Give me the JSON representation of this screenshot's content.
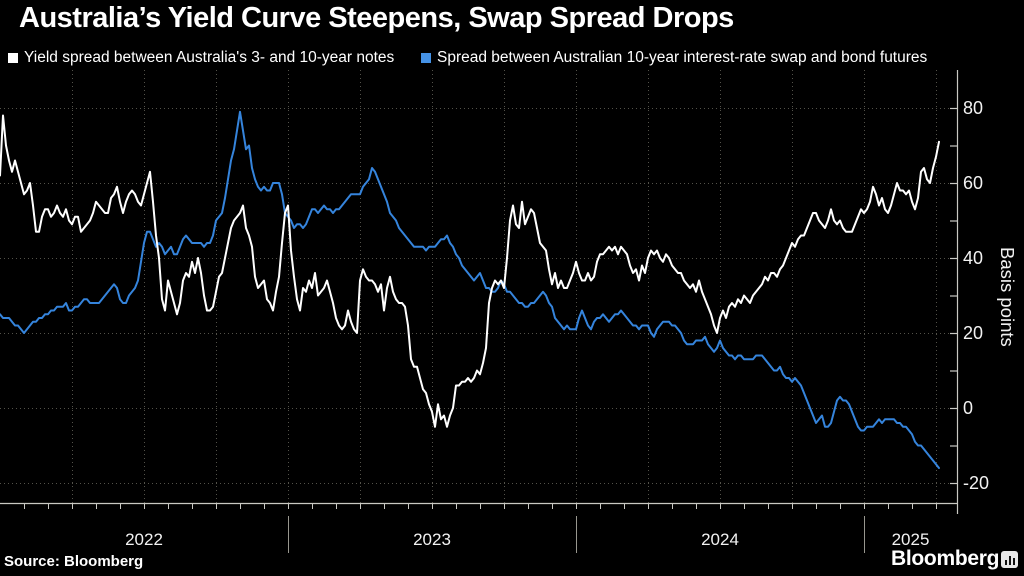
{
  "header": {
    "title": "Australia’s Yield Curve Steepens, Swap Spread Drops"
  },
  "legend": [
    {
      "label": "Yield spread between Australia's 3- and 10-year notes",
      "color": "#ffffff"
    },
    {
      "label": "Spread between Australian 10-year interest-rate swap and bond futures",
      "color": "#4592e6"
    }
  ],
  "footer": {
    "source": "Source: Bloomberg",
    "brand": "Bloomberg"
  },
  "colors": {
    "background": "#000000",
    "white_series": "#ffffff",
    "blue_series": "#3584dc",
    "grid": "#53524a",
    "axis": "#c9c9c3",
    "year_separator": "#98978f",
    "text": "#f2f2f2"
  },
  "chart_data": {
    "type": "line",
    "title": "Australia’s Yield Curve Steepens, Swap Spread Drops",
    "ylabel": "Basis points",
    "y_ticks": [
      80,
      60,
      40,
      20,
      0,
      -20
    ],
    "y_minor_step": 10,
    "ylim": [
      -25,
      90
    ],
    "x_unit": "months since 2022-01",
    "x_start": 0,
    "x_step": 0.125,
    "x_range_months": [
      0,
      39.875
    ],
    "x_tick_labels": [
      "2022",
      "2023",
      "2024",
      "2025"
    ],
    "year_boundary_months": [
      12,
      24,
      36
    ],
    "quarter_gridline_months": [
      3,
      6,
      9,
      12,
      15,
      18,
      21,
      24,
      27,
      30,
      33,
      36,
      39
    ],
    "grid": "dotted",
    "legend_position": "top",
    "series": [
      {
        "name": "Yield spread between Australia's 3- and 10-year notes",
        "color": "#ffffff",
        "values": [
          62,
          78,
          70,
          66,
          63,
          66,
          63,
          60,
          57,
          58,
          60,
          54,
          47,
          47,
          51,
          53,
          53,
          51,
          52,
          54,
          52,
          51,
          53,
          50,
          49,
          51,
          51,
          47,
          48,
          49,
          50,
          52,
          55,
          54,
          53,
          52,
          52,
          56,
          57,
          59,
          55,
          52,
          55,
          57,
          58,
          57,
          55,
          54,
          57,
          60,
          63,
          55,
          46,
          40,
          29,
          26,
          34,
          31,
          28,
          25,
          28,
          34,
          36,
          35,
          39,
          36,
          40,
          36,
          30,
          26,
          26,
          27,
          31,
          35,
          36,
          40,
          44,
          48,
          50,
          51,
          52,
          54,
          48,
          46,
          43,
          35,
          32,
          33,
          34,
          29,
          28,
          26,
          31,
          35,
          44,
          52,
          54,
          42,
          35,
          29,
          26,
          32,
          31,
          34,
          32,
          36,
          30,
          31,
          32,
          34,
          31,
          28,
          24,
          22,
          21,
          22,
          26,
          23,
          21,
          20,
          34,
          37,
          35,
          34,
          34,
          33,
          31,
          33,
          26,
          32,
          35,
          31,
          29,
          28,
          28,
          27,
          22,
          13,
          11,
          11,
          8,
          5,
          4,
          1,
          -1,
          -5,
          1,
          -3,
          -2,
          -5,
          -2,
          0,
          6,
          6,
          7,
          7,
          8,
          7,
          8,
          10,
          9,
          12,
          16,
          28,
          32,
          34,
          33,
          34,
          32,
          40,
          50,
          54,
          49,
          48,
          55,
          49,
          51,
          53,
          52,
          48,
          44,
          43,
          42,
          37,
          33,
          36,
          32,
          34,
          32,
          32,
          34,
          36,
          39,
          36,
          34,
          34,
          36,
          34,
          35,
          39,
          41,
          41,
          42,
          43,
          42,
          43,
          41,
          43,
          42,
          41,
          38,
          36,
          37,
          34,
          38,
          36,
          40,
          42,
          41,
          42,
          40,
          39,
          41,
          40,
          38,
          37,
          36,
          36,
          34,
          33,
          32,
          33,
          31,
          34,
          31,
          29,
          27,
          25,
          22,
          20,
          24,
          26,
          24,
          27,
          28,
          27,
          29,
          28,
          30,
          29,
          28,
          30,
          31,
          32,
          33,
          35,
          34,
          36,
          36,
          35,
          37,
          38,
          40,
          42,
          44,
          43,
          45,
          46,
          46,
          48,
          50,
          52,
          52,
          50,
          49,
          48,
          50,
          53,
          50,
          49,
          50,
          48,
          47,
          47,
          47,
          49,
          51,
          53,
          52,
          53,
          55,
          59,
          57,
          54,
          56,
          53,
          52,
          54,
          57,
          60,
          58,
          58,
          57,
          58,
          55,
          53,
          56,
          63,
          64,
          61,
          60,
          64,
          67,
          71
        ]
      },
      {
        "name": "Spread between Australian 10-year interest-rate swap and bond futures",
        "color": "#3584dc",
        "values": [
          25,
          24,
          24,
          24,
          23,
          22,
          22,
          21,
          20,
          21,
          22,
          23,
          23,
          24,
          24,
          25,
          25,
          26,
          26,
          27,
          27,
          27,
          28,
          26,
          26,
          27,
          27,
          28,
          29,
          29,
          28,
          28,
          28,
          28,
          29,
          30,
          31,
          32,
          33,
          32,
          29,
          28,
          28,
          30,
          31,
          32,
          34,
          39,
          44,
          47,
          47,
          45,
          43,
          44,
          43,
          41,
          42,
          43,
          41,
          41,
          43,
          45,
          46,
          45,
          44,
          44,
          44,
          44,
          43,
          44,
          44,
          46,
          50,
          51,
          52,
          56,
          61,
          66,
          69,
          74,
          79,
          74,
          69,
          70,
          64,
          61,
          59,
          58,
          59,
          58,
          58,
          60,
          60,
          60,
          57,
          52,
          51,
          50,
          48,
          49,
          49,
          48,
          49,
          51,
          53,
          53,
          52,
          53,
          54,
          53,
          53,
          52,
          53,
          53,
          54,
          55,
          56,
          57,
          57,
          57,
          57,
          59,
          60,
          61,
          64,
          63,
          61,
          59,
          57,
          55,
          52,
          51,
          50,
          48,
          47,
          46,
          45,
          44,
          43,
          43,
          43,
          43,
          42,
          43,
          43,
          43,
          44,
          45,
          45,
          46,
          44,
          43,
          41,
          40,
          38,
          37,
          36,
          35,
          34,
          35,
          36,
          34,
          32,
          32,
          31,
          31,
          32,
          34,
          33,
          31,
          31,
          30,
          29,
          28,
          28,
          27,
          27,
          28,
          28,
          29,
          30,
          31,
          30,
          28,
          27,
          24,
          23,
          22,
          21,
          22,
          21,
          21,
          21,
          24,
          26,
          24,
          22,
          21,
          23,
          24,
          24,
          25,
          24,
          23,
          24,
          25,
          25,
          26,
          25,
          24,
          23,
          22,
          22,
          21,
          22,
          22,
          22,
          20,
          19,
          21,
          22,
          23,
          23,
          23,
          22,
          22,
          21,
          20,
          18,
          17,
          17,
          17,
          18,
          18,
          18,
          19,
          17,
          16,
          15,
          16,
          18,
          16,
          15,
          14,
          14,
          13,
          14,
          14,
          13,
          13,
          13,
          13,
          14,
          14,
          14,
          13,
          12,
          11,
          10,
          10,
          11,
          9,
          8,
          8,
          7,
          8,
          7,
          6,
          4,
          2,
          0,
          -2,
          -4,
          -3,
          -2,
          -5,
          -5,
          -4,
          -1,
          2,
          3,
          2,
          2,
          1,
          -1,
          -3,
          -5,
          -6,
          -6,
          -5,
          -5,
          -5,
          -4,
          -3,
          -4,
          -3,
          -3,
          -3,
          -3,
          -4,
          -4,
          -5,
          -5,
          -6,
          -7,
          -9,
          -10,
          -10,
          -11,
          -12,
          -13,
          -14,
          -15,
          -16
        ]
      }
    ]
  }
}
